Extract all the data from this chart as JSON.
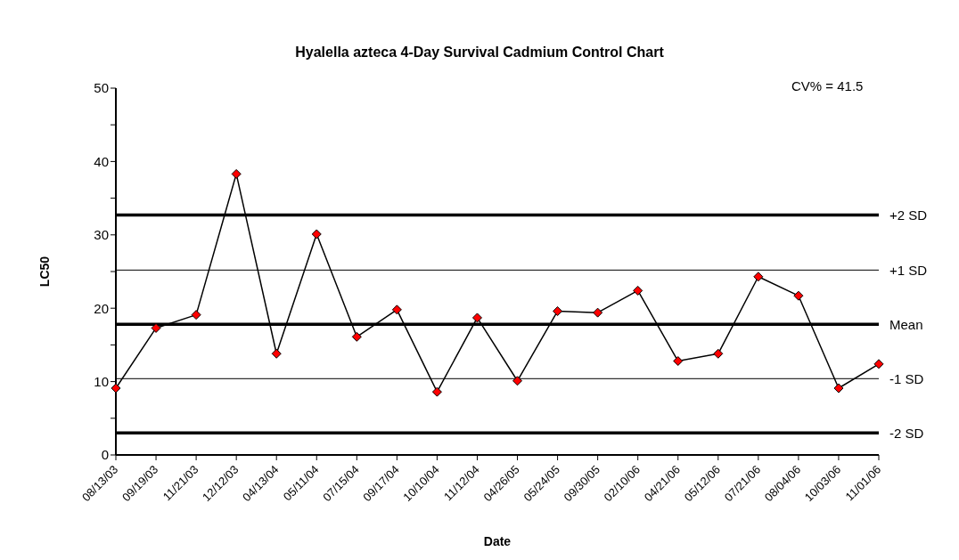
{
  "chart_data": {
    "type": "line",
    "title": "Hyalella azteca 4-Day Survival Cadmium Control Chart",
    "xlabel": "Date",
    "ylabel": "LC50",
    "categories": [
      "08/13/03",
      "09/19/03",
      "11/21/03",
      "12/12/03",
      "04/13/04",
      "05/11/04",
      "07/15/04",
      "09/17/04",
      "10/10/04",
      "11/12/04",
      "04/26/05",
      "05/24/05",
      "09/30/05",
      "02/10/06",
      "04/21/06",
      "05/12/06",
      "07/21/06",
      "08/04/06",
      "10/03/06",
      "11/01/06"
    ],
    "series": [
      {
        "color": "#ff0000",
        "values": [
          9.1,
          17.3,
          19.1,
          38.3,
          13.8,
          30.1,
          16.1,
          19.8,
          8.6,
          18.7,
          10.1,
          19.6,
          19.4,
          22.4,
          12.8,
          13.8,
          24.3,
          21.7,
          9.1,
          12.4
        ]
      }
    ],
    "ylim": [
      0,
      50
    ],
    "yticks": [
      0,
      {
        "value": 5,
        "label": null
      },
      10,
      {
        "value": 15,
        "label": null
      },
      20,
      {
        "value": 25,
        "label": null
      },
      30,
      {
        "value": 35,
        "label": null
      },
      40,
      {
        "value": 45,
        "label": null
      },
      50
    ],
    "ref_lines": [
      {
        "axis": "y",
        "value": 32.7,
        "label": "+2 SD",
        "color": "#000000"
      },
      {
        "axis": "y",
        "value": 25.2,
        "label": "+1 SD",
        "color": "#000000"
      },
      {
        "axis": "y",
        "value": 17.8,
        "label": "Mean",
        "color": "#000000"
      },
      {
        "axis": "y",
        "value": 10.4,
        "label": "-1 SD",
        "color": "#000000"
      },
      {
        "axis": "y",
        "value": 3.0,
        "label": "-2 SD",
        "color": "#000000"
      }
    ],
    "annotations": [
      "CV% = 41.5"
    ],
    "grid": false,
    "marker": "diamond",
    "line_style": "solid"
  }
}
